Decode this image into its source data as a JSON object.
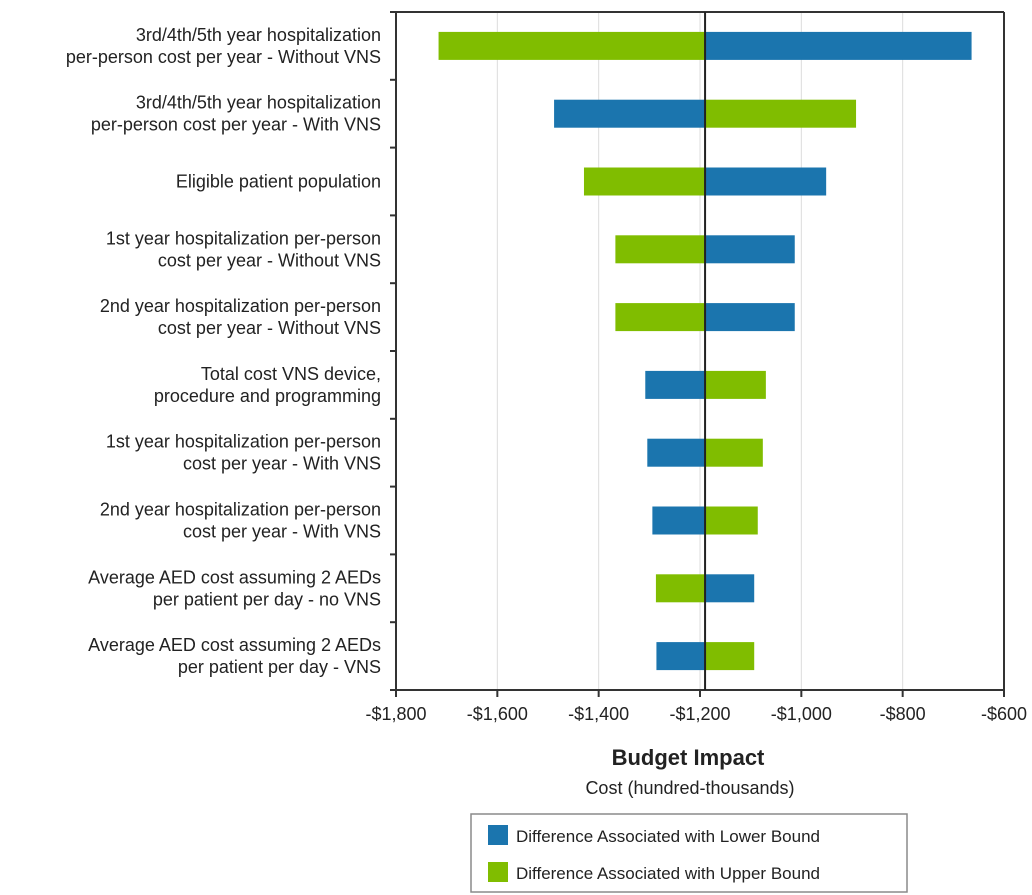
{
  "chart_data": {
    "type": "bar",
    "orientation": "horizontal",
    "subtype": "tornado",
    "categories": [
      [
        "3rd/4th/5th year hospitalization",
        "per-person cost per year - Without VNS"
      ],
      [
        "3rd/4th/5th year hospitalization",
        "per-person cost per year - With VNS"
      ],
      [
        "Eligible patient population"
      ],
      [
        "1st year hospitalization per-person",
        "cost per year - Without VNS"
      ],
      [
        "2nd year hospitalization per-person",
        "cost per year - Without VNS"
      ],
      [
        "Total cost VNS device,",
        "procedure and programming"
      ],
      [
        "1st year hospitalization per-person",
        "cost per year - With VNS"
      ],
      [
        "2nd year hospitalization per-person",
        "cost per year - With VNS"
      ],
      [
        "Average AED cost assuming 2 AEDs",
        "per patient per day - no VNS"
      ],
      [
        "Average AED cost assuming 2 AEDs",
        "per patient per day - VNS"
      ]
    ],
    "base_value": -1190,
    "series": [
      {
        "name": "Difference Associated with Lower Bound",
        "color": "#1b75ae",
        "values": [
          -664,
          -1488,
          -951,
          -1013,
          -1013,
          -1308,
          -1304,
          -1294,
          -1093,
          -1286
        ]
      },
      {
        "name": "Difference Associated with Upper Bound",
        "color": "#80bd00",
        "values": [
          -1716,
          -892,
          -1429,
          -1367,
          -1367,
          -1070,
          -1076,
          -1086,
          -1287,
          -1093
        ]
      }
    ],
    "xlim": [
      -1800,
      -600
    ],
    "xticks": [
      "-$1,800",
      "-$1,600",
      "-$1,400",
      "-$1,200",
      "-$1,000",
      "-$800",
      "-$600"
    ],
    "xtick_values": [
      -1800,
      -1600,
      -1400,
      -1200,
      -1000,
      -800,
      -600
    ],
    "xlabel": "Budget Impact",
    "xlabel_sub": "Cost (hundred-thousands)",
    "grid": true,
    "legend_position": "bottom"
  }
}
